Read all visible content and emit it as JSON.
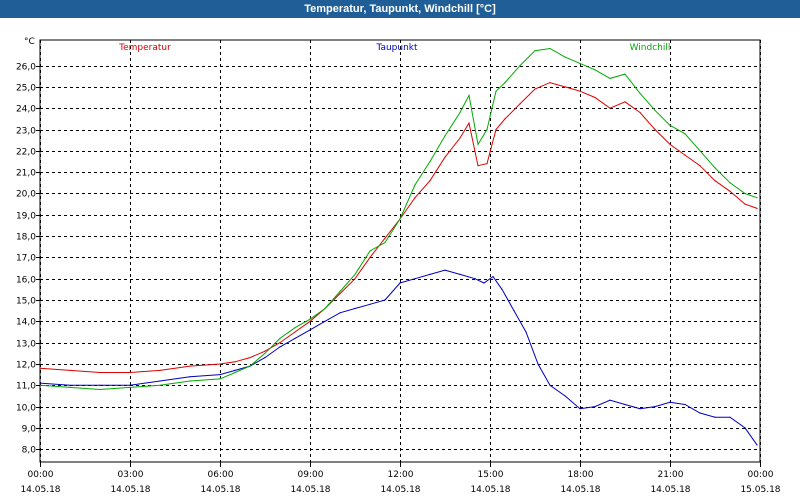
{
  "window": {
    "title": "Temperatur, Taupunkt, Windchill [°C]"
  },
  "chart_data": {
    "type": "line",
    "title": "Temperatur, Taupunkt, Windchill [°C]",
    "ylabel": "°C",
    "ylim": [
      7.4,
      27.2
    ],
    "yticks": [
      "8,0",
      "9,0",
      "10,0",
      "11,0",
      "12,0",
      "13,0",
      "14,0",
      "15,0",
      "16,0",
      "17,0",
      "18,0",
      "19,0",
      "20,0",
      "21,0",
      "22,0",
      "23,0",
      "24,0",
      "25,0",
      "26,0"
    ],
    "ytick_values": [
      8,
      9,
      10,
      11,
      12,
      13,
      14,
      15,
      16,
      17,
      18,
      19,
      20,
      21,
      22,
      23,
      24,
      25,
      26
    ],
    "xlim": [
      0,
      24
    ],
    "xticks": [
      {
        "x": 0,
        "time": "00:00",
        "date": "14.05.18"
      },
      {
        "x": 3,
        "time": "03:00",
        "date": "14.05.18"
      },
      {
        "x": 6,
        "time": "06:00",
        "date": "14.05.18"
      },
      {
        "x": 9,
        "time": "09:00",
        "date": "14.05.18"
      },
      {
        "x": 12,
        "time": "12:00",
        "date": "14.05.18"
      },
      {
        "x": 15,
        "time": "15:00",
        "date": "14.05.18"
      },
      {
        "x": 18,
        "time": "18:00",
        "date": "14.05.18"
      },
      {
        "x": 21,
        "time": "21:00",
        "date": "14.05.18"
      },
      {
        "x": 24,
        "time": "00:00",
        "date": "15.05.18"
      }
    ],
    "grid": true,
    "colors": {
      "titlebar": "#1f5e96",
      "grid": "#000000"
    },
    "series": [
      {
        "name": "Temperatur",
        "color": "#dd0000",
        "x": [
          0,
          1,
          2,
          3,
          4,
          5,
          6,
          6.5,
          7,
          7.5,
          8,
          8.5,
          9,
          9.5,
          10,
          10.5,
          11,
          11.5,
          12,
          12.5,
          13,
          13.5,
          14,
          14.3,
          14.6,
          14.9,
          15.2,
          15.5,
          16,
          16.5,
          17,
          17.5,
          18,
          18.5,
          19,
          19.5,
          20,
          20.5,
          21,
          21.5,
          22,
          22.5,
          23,
          23.5,
          23.9
        ],
        "values": [
          11.8,
          11.7,
          11.6,
          11.6,
          11.7,
          11.9,
          12.0,
          12.1,
          12.3,
          12.6,
          13.0,
          13.5,
          14.0,
          14.6,
          15.3,
          16.0,
          17.0,
          17.9,
          18.8,
          19.8,
          20.6,
          21.7,
          22.6,
          23.3,
          21.3,
          21.4,
          23.0,
          23.5,
          24.2,
          24.9,
          25.2,
          25.0,
          24.8,
          24.5,
          24.0,
          24.3,
          23.8,
          23.0,
          22.3,
          21.8,
          21.3,
          20.6,
          20.1,
          19.5,
          19.3
        ]
      },
      {
        "name": "Taupunkt",
        "color": "#0000c0",
        "x": [
          0,
          1,
          2,
          3,
          4,
          5,
          6,
          6.5,
          7,
          7.5,
          8,
          8.5,
          9,
          9.5,
          10,
          10.5,
          11,
          11.5,
          12,
          12.5,
          13,
          13.5,
          14,
          14.5,
          14.8,
          15.1,
          15.4,
          15.8,
          16.2,
          16.6,
          17,
          17.5,
          18,
          18.5,
          19,
          19.5,
          20,
          20.5,
          21,
          21.5,
          22,
          22.5,
          23,
          23.5,
          23.9
        ],
        "values": [
          11.1,
          11.0,
          11.0,
          11.0,
          11.2,
          11.4,
          11.5,
          11.7,
          11.9,
          12.3,
          12.8,
          13.2,
          13.6,
          14.0,
          14.4,
          14.6,
          14.8,
          15.0,
          15.8,
          16.0,
          16.2,
          16.4,
          16.2,
          16.0,
          15.8,
          16.1,
          15.5,
          14.5,
          13.5,
          12.0,
          11.0,
          10.5,
          9.9,
          10.0,
          10.3,
          10.1,
          9.9,
          10.0,
          10.2,
          10.1,
          9.7,
          9.5,
          9.5,
          9.0,
          8.2
        ]
      },
      {
        "name": "Windchill",
        "color": "#00aa00",
        "x": [
          0,
          1,
          2,
          3,
          4,
          5,
          6,
          6.5,
          7,
          7.5,
          8,
          8.5,
          9,
          9.5,
          10,
          10.5,
          11,
          11.5,
          12,
          12.5,
          13,
          13.5,
          14,
          14.3,
          14.6,
          14.9,
          15.2,
          15.5,
          16,
          16.5,
          17,
          17.5,
          18,
          18.5,
          19,
          19.5,
          20,
          20.5,
          21,
          21.5,
          22,
          22.5,
          23,
          23.5,
          23.9
        ],
        "values": [
          11.0,
          10.9,
          10.8,
          10.9,
          11.0,
          11.2,
          11.3,
          11.6,
          11.9,
          12.5,
          13.2,
          13.7,
          14.1,
          14.6,
          15.4,
          16.2,
          17.3,
          17.7,
          18.8,
          20.4,
          21.5,
          22.7,
          23.8,
          24.6,
          22.3,
          23.0,
          24.8,
          25.2,
          26.0,
          26.7,
          26.8,
          26.4,
          26.1,
          25.8,
          25.4,
          25.6,
          24.7,
          23.9,
          23.2,
          22.8,
          22.0,
          21.2,
          20.5,
          20.0,
          19.8
        ]
      }
    ]
  }
}
